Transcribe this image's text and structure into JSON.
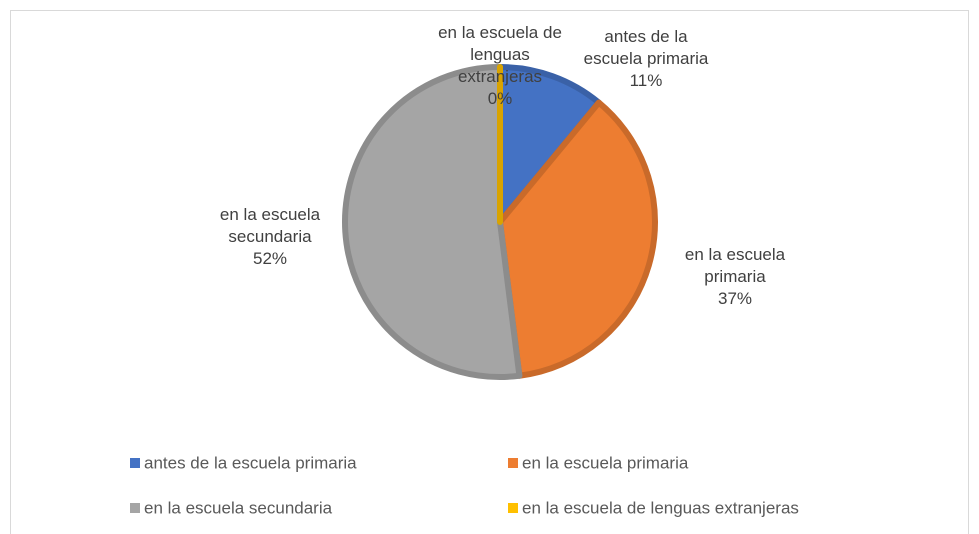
{
  "chart_data": {
    "type": "pie",
    "categories": [
      "antes de la escuela primaria",
      "en la escuela primaria",
      "en la escuela secundaria",
      "en la escuela de lenguas extranjeras"
    ],
    "values": [
      11,
      37,
      52,
      0
    ],
    "value_labels": [
      "11%",
      "37%",
      "52%",
      "0%"
    ],
    "colors": [
      "#4472c4",
      "#ed7d31",
      "#a5a5a5",
      "#ffc000"
    ],
    "legend": "bottom"
  }
}
